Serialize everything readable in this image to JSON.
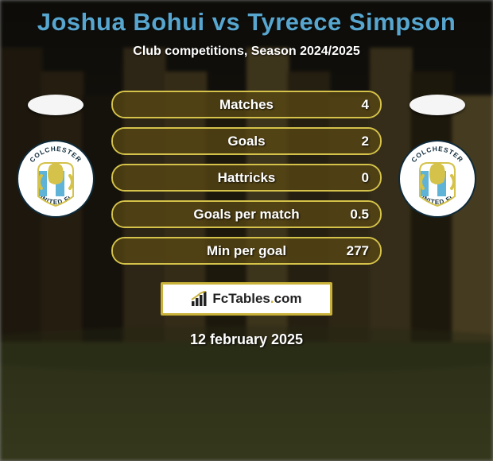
{
  "title": "Joshua Bohui vs Tyreece Simpson",
  "subtitle": "Club competitions, Season 2024/2025",
  "date": "12 february 2025",
  "brand": "FcTables.com",
  "colors": {
    "title": "#57a6cf",
    "bar_border": "#d4c24a",
    "bar_fill": "rgba(96,77,21,0.7)",
    "badge_blue": "#5eb3d6",
    "badge_dark": "#0e2a3a"
  },
  "stats": [
    {
      "label": "Matches",
      "value": "4",
      "fill_pct": 100
    },
    {
      "label": "Goals",
      "value": "2",
      "fill_pct": 100
    },
    {
      "label": "Hattricks",
      "value": "0",
      "fill_pct": 100
    },
    {
      "label": "Goals per match",
      "value": "0.5",
      "fill_pct": 100
    },
    {
      "label": "Min per goal",
      "value": "277",
      "fill_pct": 100
    }
  ],
  "bg_bars": [
    "#3a2f1a",
    "#4a3a20",
    "#2a2416",
    "#5a4a2a",
    "#6a5830",
    "#3a3018",
    "#7a6838",
    "#4a3e22",
    "#5a4c2a",
    "#6a5a32",
    "#3a3018",
    "#8a7640"
  ]
}
